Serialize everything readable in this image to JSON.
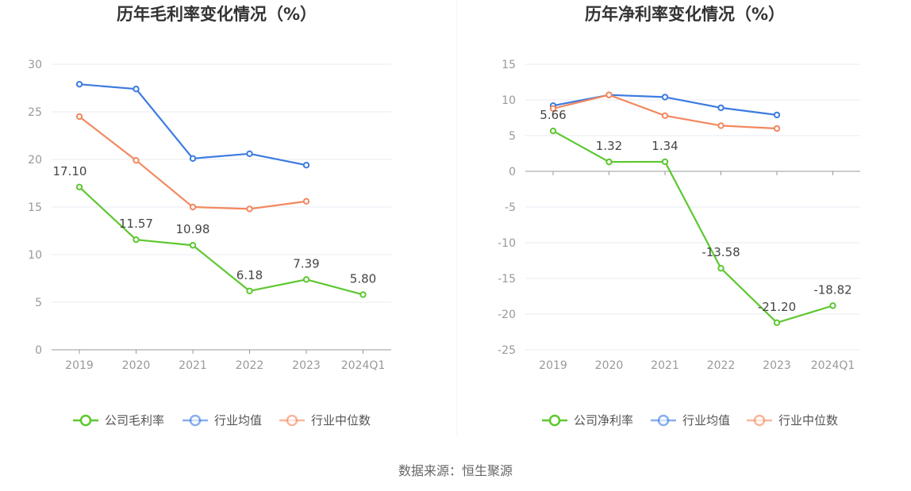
{
  "colors": {
    "company": "#5ec731",
    "industry_avg": "#3d7be0",
    "industry_median": "#f2895f",
    "grid": "#e8ebf3",
    "axis": "#999999"
  },
  "source": "数据来源：恒生聚源",
  "chart_data": [
    {
      "type": "line",
      "title": "历年毛利率变化情况（%）",
      "categories": [
        "2019",
        "2020",
        "2021",
        "2022",
        "2023",
        "2024Q1"
      ],
      "ylim": [
        0,
        30
      ],
      "yticks": [
        0,
        5,
        10,
        15,
        20,
        25,
        30
      ],
      "grid": true,
      "legend_position": "bottom",
      "series": [
        {
          "name": "公司毛利率",
          "key": "company",
          "values": [
            17.1,
            11.57,
            10.98,
            6.18,
            7.39,
            5.8
          ],
          "labels": [
            "17.10",
            "11.57",
            "10.98",
            "6.18",
            "7.39",
            "5.80"
          ]
        },
        {
          "name": "行业均值",
          "key": "industry_avg",
          "values": [
            27.9,
            27.4,
            20.1,
            20.6,
            19.4,
            null
          ]
        },
        {
          "name": "行业中位数",
          "key": "industry_median",
          "values": [
            24.5,
            19.9,
            15.0,
            14.8,
            15.6,
            null
          ]
        }
      ]
    },
    {
      "type": "line",
      "title": "历年净利率变化情况（%）",
      "categories": [
        "2019",
        "2020",
        "2021",
        "2022",
        "2023",
        "2024Q1"
      ],
      "ylim": [
        -25,
        15
      ],
      "yticks": [
        -25,
        -20,
        -15,
        -10,
        -5,
        0,
        5,
        10,
        15
      ],
      "grid": true,
      "legend_position": "bottom",
      "series": [
        {
          "name": "公司净利率",
          "key": "company",
          "values": [
            5.66,
            1.32,
            1.34,
            -13.58,
            -21.2,
            -18.82
          ],
          "labels": [
            "5.66",
            "1.32",
            "1.34",
            "-13.58",
            "-21.20",
            "-18.82"
          ]
        },
        {
          "name": "行业均值",
          "key": "industry_avg",
          "values": [
            9.2,
            10.7,
            10.4,
            8.9,
            7.9,
            null
          ]
        },
        {
          "name": "行业中位数",
          "key": "industry_median",
          "values": [
            8.8,
            10.7,
            7.8,
            6.4,
            6.0,
            null
          ]
        }
      ]
    }
  ]
}
